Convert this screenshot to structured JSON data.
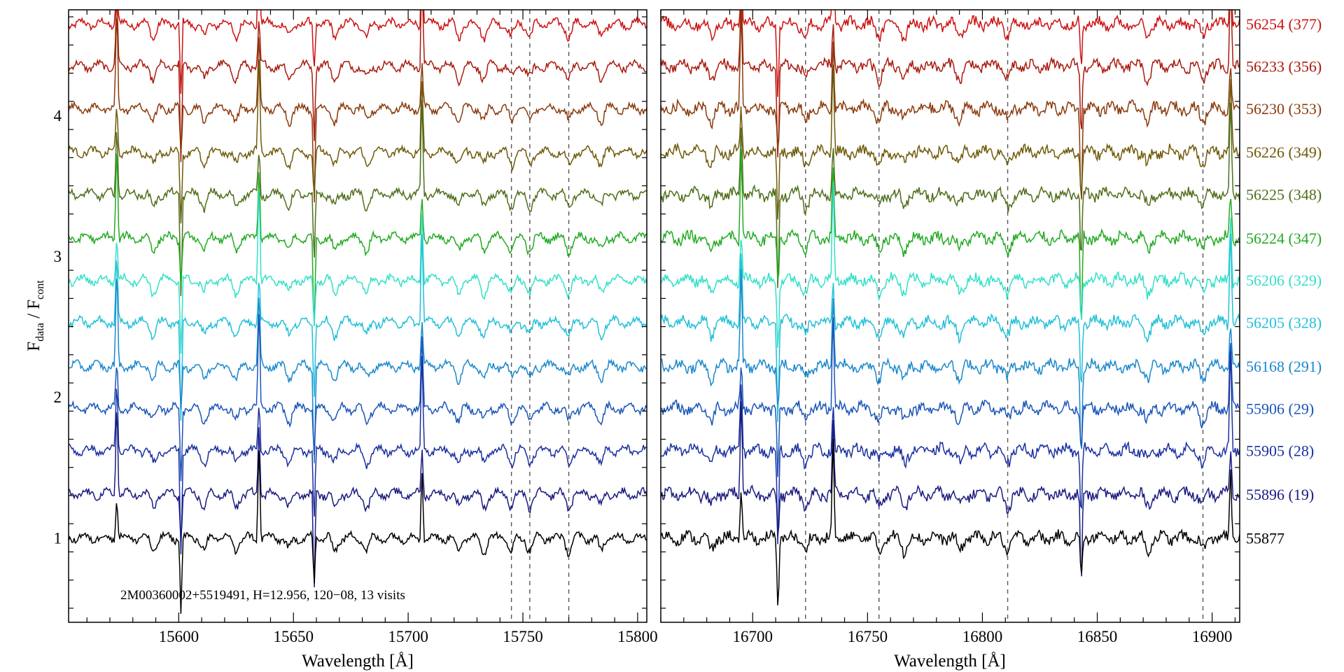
{
  "chart_data": {
    "type": "line",
    "ylabel": {
      "main": "F",
      "sub1": "data",
      "sep": " / ",
      "main2": "F",
      "sub2": "cont"
    },
    "annotation": "2M00360002+5519491,    H=12.956,    120−08,    13 visits",
    "ylim": [
      0.4,
      4.75
    ],
    "yticks": [
      1,
      2,
      3,
      4
    ],
    "yticks_labels": [
      "1",
      "2",
      "3",
      "4"
    ],
    "panels": [
      {
        "xlabel": "Wavelength [Å]",
        "xlim": [
          15552,
          15804
        ],
        "xticks": [
          15600,
          15650,
          15700,
          15750,
          15800
        ],
        "xtick_labels": [
          "15600",
          "15650",
          "15700",
          "15750",
          "15800"
        ],
        "dashed_lines": [
          15745,
          15753,
          15770
        ],
        "emission_lines": [
          15573,
          15601,
          15635,
          15659,
          15706
        ],
        "absorption_dips": [
          15589,
          15611,
          15625,
          15648,
          15668,
          15682,
          15722,
          15733,
          15745,
          15753,
          15770,
          15784
        ]
      },
      {
        "xlabel": "Wavelength [Å]",
        "xlim": [
          16660,
          16912
        ],
        "xticks": [
          16700,
          16750,
          16800,
          16850,
          16900
        ],
        "xtick_labels": [
          "16700",
          "16750",
          "16800",
          "16850",
          "16900"
        ],
        "dashed_lines": [
          16723,
          16755,
          16811,
          16896
        ],
        "emission_lines": [
          16695,
          16711,
          16735,
          16843,
          16908
        ],
        "absorption_dips": [
          16682,
          16723,
          16755,
          16766,
          16790,
          16811,
          16872,
          16896
        ]
      }
    ],
    "series": [
      {
        "label": "56254 (377)",
        "offset": 4.65,
        "color": "#cc1111"
      },
      {
        "label": "56233 (356)",
        "offset": 4.35,
        "color": "#a81a0e"
      },
      {
        "label": "56230 (353)",
        "offset": 4.05,
        "color": "#8a3a0c"
      },
      {
        "label": "56226 (349)",
        "offset": 3.74,
        "color": "#6e5a0a"
      },
      {
        "label": "56225 (348)",
        "offset": 3.44,
        "color": "#4e6e1a"
      },
      {
        "label": "56224 (347)",
        "offset": 3.13,
        "color": "#22aa22"
      },
      {
        "label": "56206 (329)",
        "offset": 2.83,
        "color": "#33e0c8"
      },
      {
        "label": "56205 (328)",
        "offset": 2.53,
        "color": "#22c0d8"
      },
      {
        "label": "56168 (291)",
        "offset": 2.22,
        "color": "#1a88cc"
      },
      {
        "label": "55906 (29)",
        "offset": 1.92,
        "color": "#1a55b8"
      },
      {
        "label": "55905 (28)",
        "offset": 1.62,
        "color": "#1a30a0"
      },
      {
        "label": "55896 (19)",
        "offset": 1.31,
        "color": "#1a1a80"
      },
      {
        "label": "55877",
        "offset": 1.0,
        "color": "#000000"
      }
    ]
  }
}
